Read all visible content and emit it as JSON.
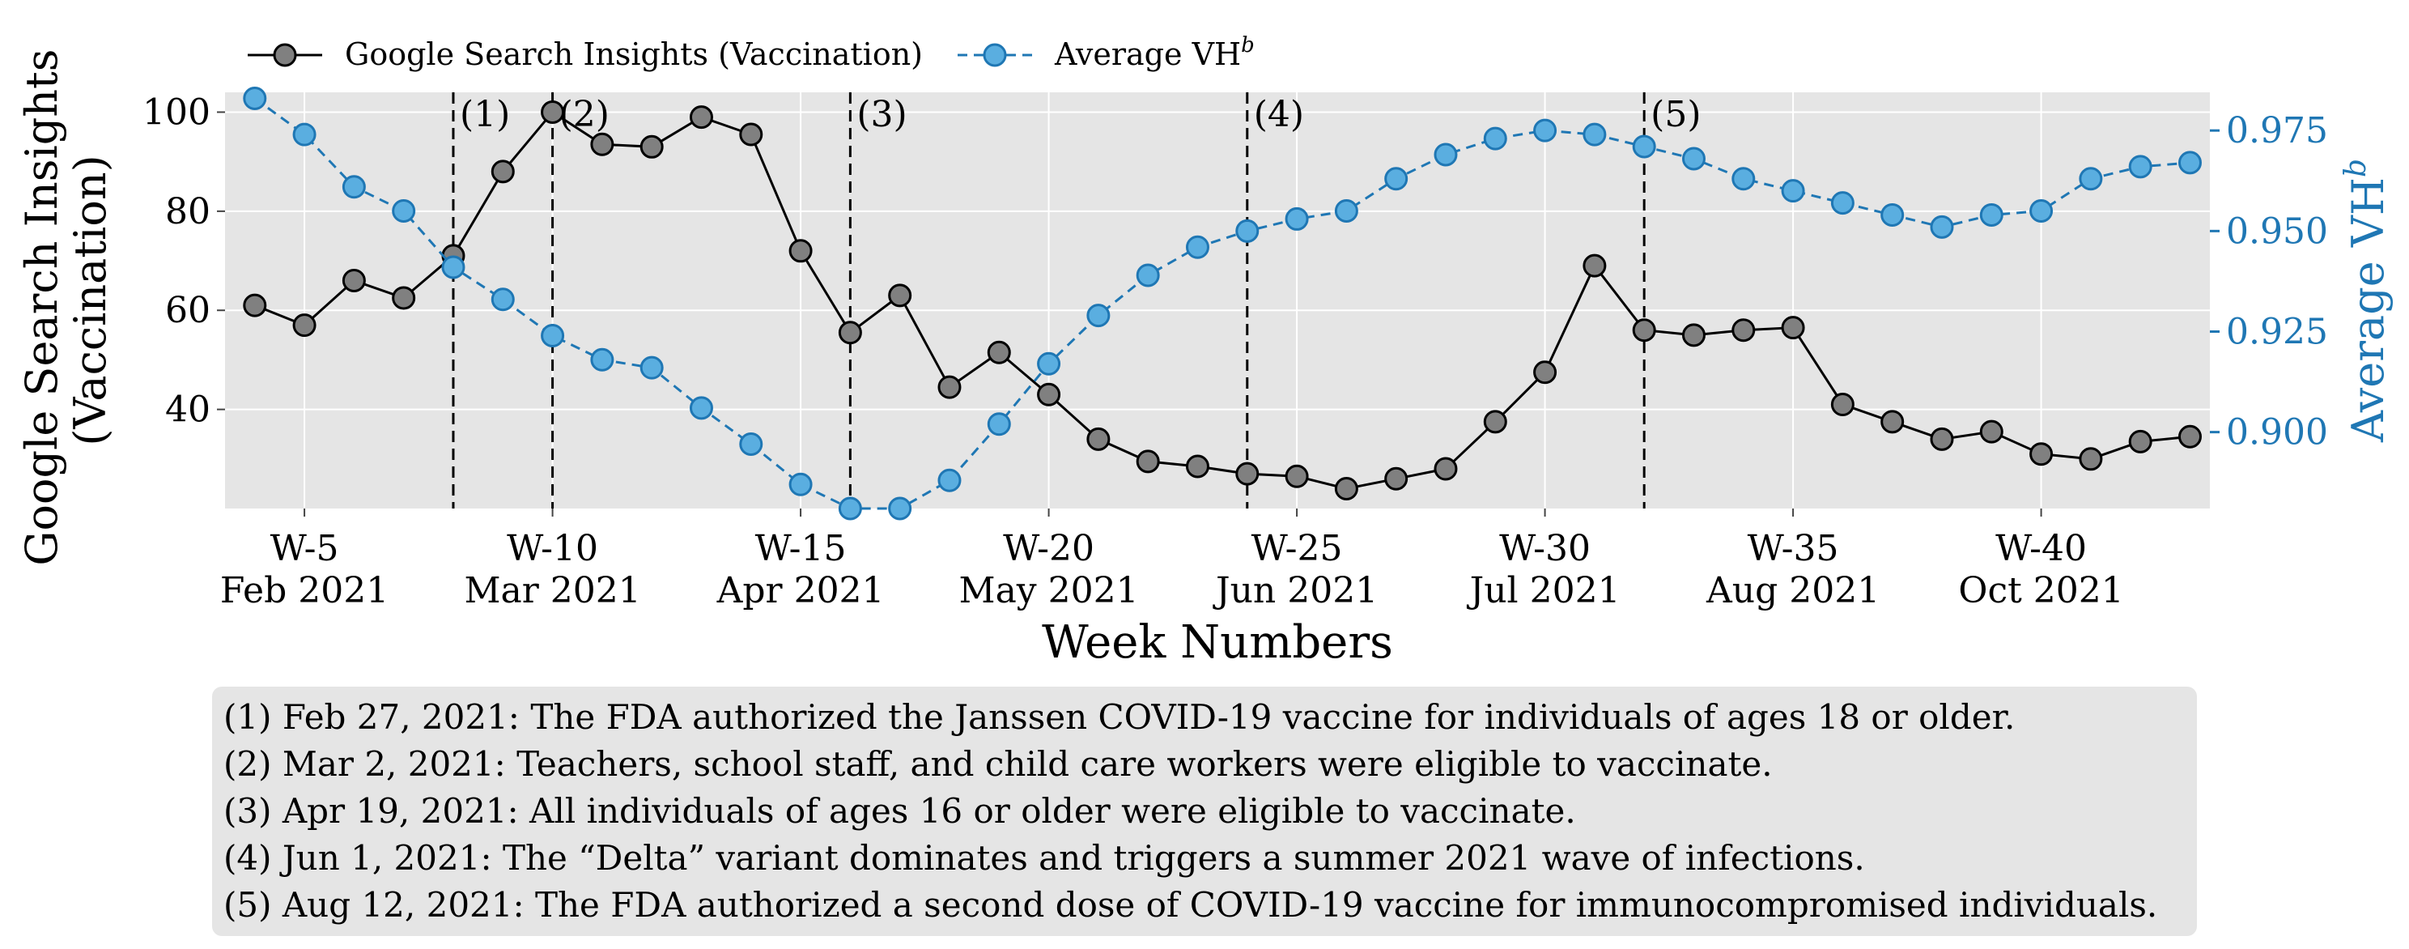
{
  "chart_data": {
    "type": "line",
    "xlabel": "Week Numbers",
    "ylabel_left": [
      "Google Search Insights",
      "(Vaccination)"
    ],
    "ylabel_right": "Average VH",
    "ylabel_right_superscript": "b",
    "ylim_left": [
      20,
      104
    ],
    "ylim_right": [
      0.881,
      0.9845
    ],
    "xlim": [
      3.4,
      43.4
    ],
    "grid": true,
    "legend_position": "top-left, above plot",
    "x_ticks": [
      {
        "x": 5,
        "week": "W-5",
        "month": "Feb 2021"
      },
      {
        "x": 10,
        "week": "W-10",
        "month": "Mar 2021"
      },
      {
        "x": 15,
        "week": "W-15",
        "month": "Apr 2021"
      },
      {
        "x": 20,
        "week": "W-20",
        "month": "May 2021"
      },
      {
        "x": 25,
        "week": "W-25",
        "month": "Jun 2021"
      },
      {
        "x": 30,
        "week": "W-30",
        "month": "Jul 2021"
      },
      {
        "x": 35,
        "week": "W-35",
        "month": "Aug 2021"
      },
      {
        "x": 40,
        "week": "W-40",
        "month": "Oct 2021"
      }
    ],
    "y_ticks_left": [
      40,
      60,
      80,
      100
    ],
    "y_ticks_right": [
      0.9,
      0.925,
      0.95,
      0.975
    ],
    "y_tick_labels_right": [
      "0.900",
      "0.925",
      "0.950",
      "0.975"
    ],
    "x": [
      4,
      5,
      6,
      7,
      8,
      9,
      10,
      11,
      12,
      13,
      14,
      15,
      16,
      17,
      18,
      19,
      20,
      21,
      22,
      23,
      24,
      25,
      26,
      27,
      28,
      29,
      30,
      31,
      32,
      33,
      34,
      35,
      36,
      37,
      38,
      39,
      40,
      41,
      42,
      43
    ],
    "series": [
      {
        "name": "Google Search Insights (Vaccination)",
        "axis": "left",
        "color": "#000000",
        "marker_fill": "#808080",
        "line_style": "solid",
        "values": [
          61,
          57,
          66,
          62.5,
          71,
          88,
          100,
          93.5,
          93,
          99,
          95.5,
          72,
          55.5,
          63,
          44.5,
          51.5,
          43,
          34,
          29.5,
          28.5,
          27,
          26.5,
          24,
          26,
          28,
          37.5,
          47.5,
          69,
          56,
          55,
          56,
          56.5,
          41,
          37.5,
          34,
          35.5,
          31,
          30,
          33.5,
          34.5
        ]
      },
      {
        "name": "Average VH",
        "name_superscript": "b",
        "axis": "right",
        "color": "#1f77b4",
        "marker_fill": "#5aaee0",
        "line_style": "dashed",
        "values": [
          0.983,
          0.974,
          0.961,
          0.955,
          0.941,
          0.933,
          0.924,
          0.918,
          0.916,
          0.906,
          0.897,
          0.887,
          0.881,
          0.881,
          0.888,
          0.902,
          0.917,
          0.929,
          0.939,
          0.946,
          0.95,
          0.953,
          0.955,
          0.963,
          0.969,
          0.973,
          0.975,
          0.974,
          0.971,
          0.968,
          0.963,
          0.96,
          0.957,
          0.954,
          0.951,
          0.954,
          0.955,
          0.963,
          0.966,
          0.967
        ]
      }
    ],
    "events": [
      {
        "x": 8,
        "label": "(1)"
      },
      {
        "x": 10,
        "label": "(2)"
      },
      {
        "x": 16,
        "label": "(3)"
      },
      {
        "x": 24,
        "label": "(4)"
      },
      {
        "x": 32,
        "label": "(5)"
      }
    ]
  },
  "annotations": [
    "(1) Feb 27, 2021: The FDA authorized the Janssen COVID-19 vaccine for individuals of ages 18 or older.",
    "(2) Mar 2, 2021: Teachers, school staff, and child care workers were eligible to vaccinate.",
    "(3) Apr 19, 2021: All individuals of ages 16 or older were eligible to vaccinate.",
    "(4) Jun 1, 2021: The “Delta” variant dominates and triggers a summer 2021 wave of infections.",
    "(5) Aug 12, 2021: The FDA authorized a second dose of COVID-19 vaccine for immunocompromised individuals."
  ],
  "colors": {
    "plot_background": "#e5e5e5",
    "grid": "#ffffff",
    "right_axis": "#1f77b4",
    "event_line": "#000000",
    "annotation_box": "#e5e5e5"
  }
}
